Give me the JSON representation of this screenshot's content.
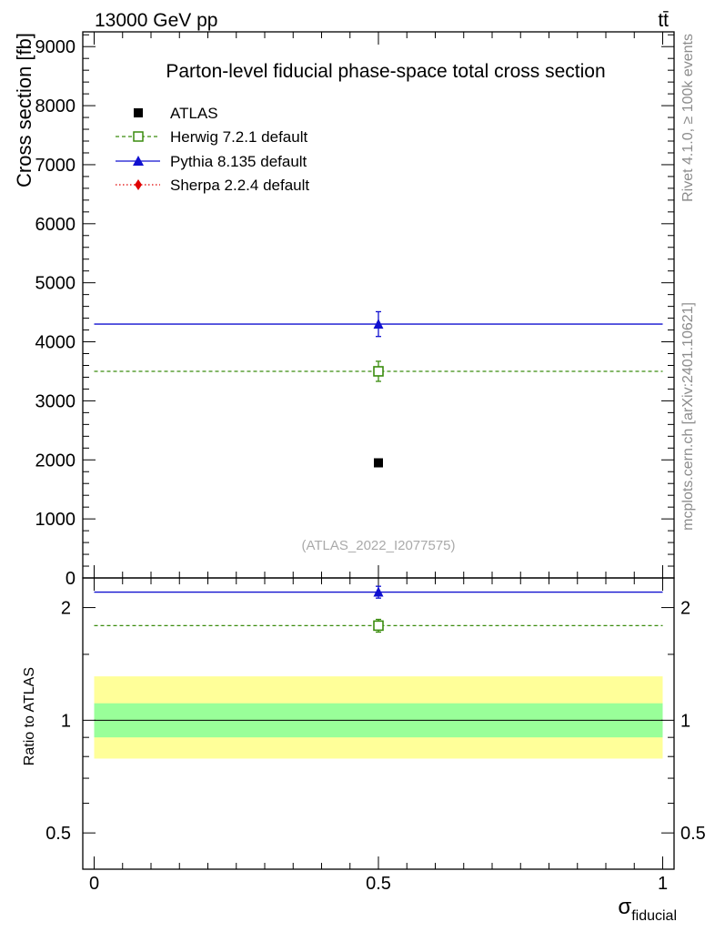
{
  "header": {
    "energy_label": "13000 GeV pp",
    "process_label": "tt̄"
  },
  "side_labels": {
    "rivet": "Rivet 4.1.0, ≥ 100k events",
    "mcplots": "mcplots.cern.ch [arXiv:2401.10621]"
  },
  "colors": {
    "atlas": "#000000",
    "herwig": "#3a8c0e",
    "pythia": "#1010d0",
    "sherpa": "#e00000",
    "band_inner": "#99ff99",
    "band_outer": "#ffff99"
  },
  "chart_data": [
    {
      "type": "scatter",
      "panel": "main",
      "title": "Parton-level fiducial phase-space total cross section",
      "ylabel": "Cross section [fb]",
      "xlabel": "",
      "xlim": [
        -0.02,
        1.02
      ],
      "ylim": [
        0,
        9250
      ],
      "yticks": [
        0,
        1000,
        2000,
        3000,
        4000,
        5000,
        6000,
        7000,
        8000,
        9000
      ],
      "ytick_labels": [
        "0",
        "1000",
        "2000",
        "3000",
        "4000",
        "5000",
        "6000",
        "7000",
        "8000",
        "9000"
      ],
      "watermark": "(ATLAS_2022_I2077575)",
      "legend_position": "top-left",
      "series": [
        {
          "name": "ATLAS",
          "marker": "filled-square",
          "line": "none",
          "x": 0.5,
          "y": 1950,
          "xerr": [
            0.5,
            0.5
          ],
          "yerr": [
            20,
            20
          ]
        },
        {
          "name": "Herwig 7.2.1 default",
          "marker": "open-square",
          "line": "dashed",
          "x": 0.5,
          "y": 3500,
          "xerr": [
            0.5,
            0.5
          ],
          "yerr": [
            170,
            170
          ]
        },
        {
          "name": "Pythia 8.135 default",
          "marker": "triangle",
          "line": "solid",
          "x": 0.5,
          "y": 4300,
          "xerr": [
            0.5,
            0.5
          ],
          "yerr": [
            210,
            210
          ]
        },
        {
          "name": "Sherpa 2.2.4 default",
          "marker": "diamond",
          "line": "dotted",
          "x": null,
          "y": null
        }
      ]
    },
    {
      "type": "scatter",
      "panel": "ratio",
      "ylabel": "Ratio to ATLAS",
      "xlabel": "σ",
      "xlabel_sub": "fiducial",
      "xlim": [
        -0.02,
        1.02
      ],
      "ylim": [
        0.4,
        2.4
      ],
      "ylog": true,
      "yticks": [
        0.5,
        1,
        2
      ],
      "ytick_labels": [
        "0.5",
        "1",
        "2"
      ],
      "xticks": [
        0,
        0.5,
        1
      ],
      "xtick_labels": [
        "0",
        "0.5",
        "1"
      ],
      "band_inner": [
        0.9,
        1.11
      ],
      "band_outer": [
        0.79,
        1.31
      ],
      "reference": 1,
      "series": [
        {
          "name": "Herwig 7.2.1 default",
          "x": 0.5,
          "y": 1.79,
          "yerr": [
            0.07,
            0.07
          ]
        },
        {
          "name": "Pythia 8.135 default",
          "x": 0.5,
          "y": 2.2,
          "yerr": [
            0.08,
            0.08
          ]
        }
      ]
    }
  ]
}
